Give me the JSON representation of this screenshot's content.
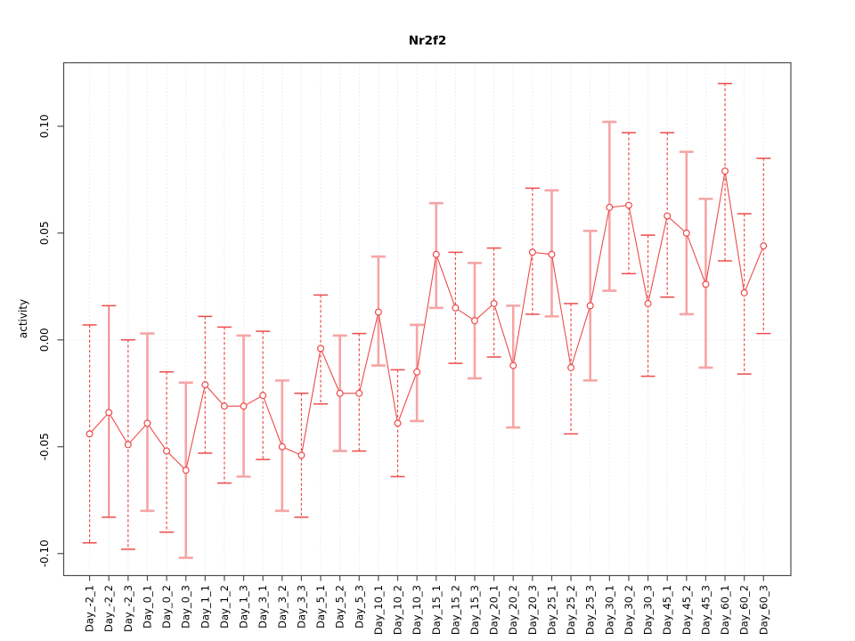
{
  "window": {
    "title": "Nr2f2 activity plot"
  },
  "colors": {
    "series_red": "#ee4b4b",
    "series_pink": "#f5a5a5",
    "grid": "#d9d9d9",
    "axis": "#4d4d4d",
    "text": "#000000",
    "background": "#ffffff"
  },
  "chart_data": {
    "type": "scatter",
    "title": "Nr2f2",
    "xlabel": "",
    "ylabel": "activity",
    "ylim": [
      -0.1103,
      0.1297
    ],
    "yticks": [
      {
        "value": -0.1,
        "label": "-0.10"
      },
      {
        "value": -0.05,
        "label": "-0.05"
      },
      {
        "value": 0.0,
        "label": "0.00"
      },
      {
        "value": 0.05,
        "label": "0.05"
      },
      {
        "value": 0.1,
        "label": "0.10"
      }
    ],
    "grid": {
      "vertical_dotted_per_category": true,
      "zero_reference_line_dotted": true
    },
    "legend": "none",
    "marker": "open-circle",
    "error_bars": true,
    "categories": [
      "Day_-2_1",
      "Day_-2_2",
      "Day_-2_3",
      "Day_0_1",
      "Day_0_2",
      "Day_0_3",
      "Day_1_1",
      "Day_1_2",
      "Day_1_3",
      "Day_3_1",
      "Day_3_2",
      "Day_3_3",
      "Day_5_1",
      "Day_5_2",
      "Day_5_3",
      "Day_10_1",
      "Day_10_2",
      "Day_10_3",
      "Day_15_1",
      "Day_15_2",
      "Day_15_3",
      "Day_20_1",
      "Day_20_2",
      "Day_20_3",
      "Day_25_1",
      "Day_25_2",
      "Day_25_3",
      "Day_30_1",
      "Day_30_2",
      "Day_30_3",
      "Day_45_1",
      "Day_45_2",
      "Day_45_3",
      "Day_60_1",
      "Day_60_2",
      "Day_60_3"
    ],
    "series": [
      {
        "name": "activity",
        "points": [
          {
            "label": "Day_-2_1",
            "value": -0.044,
            "lo": -0.095,
            "hi": 0.007,
            "style": "dashed"
          },
          {
            "label": "Day_-2_2",
            "value": -0.034,
            "lo": -0.083,
            "hi": 0.016,
            "style": "solid"
          },
          {
            "label": "Day_-2_3",
            "value": -0.049,
            "lo": -0.098,
            "hi": 0.0,
            "style": "dashed"
          },
          {
            "label": "Day_0_1",
            "value": -0.039,
            "lo": -0.08,
            "hi": 0.003,
            "style": "pink"
          },
          {
            "label": "Day_0_2",
            "value": -0.052,
            "lo": -0.09,
            "hi": -0.015,
            "style": "dashed"
          },
          {
            "label": "Day_0_3",
            "value": -0.061,
            "lo": -0.102,
            "hi": -0.02,
            "style": "pink"
          },
          {
            "label": "Day_1_1",
            "value": -0.021,
            "lo": -0.053,
            "hi": 0.011,
            "style": "dashed"
          },
          {
            "label": "Day_1_2",
            "value": -0.031,
            "lo": -0.067,
            "hi": 0.006,
            "style": "dashed"
          },
          {
            "label": "Day_1_3",
            "value": -0.031,
            "lo": -0.064,
            "hi": 0.002,
            "style": "pink"
          },
          {
            "label": "Day_3_1",
            "value": -0.026,
            "lo": -0.056,
            "hi": 0.004,
            "style": "dashed"
          },
          {
            "label": "Day_3_2",
            "value": -0.05,
            "lo": -0.08,
            "hi": -0.019,
            "style": "pink"
          },
          {
            "label": "Day_3_3",
            "value": -0.054,
            "lo": -0.083,
            "hi": -0.025,
            "style": "dashed"
          },
          {
            "label": "Day_5_1",
            "value": -0.004,
            "lo": -0.03,
            "hi": 0.021,
            "style": "dashed"
          },
          {
            "label": "Day_5_2",
            "value": -0.025,
            "lo": -0.052,
            "hi": 0.002,
            "style": "pink"
          },
          {
            "label": "Day_5_3",
            "value": -0.025,
            "lo": -0.052,
            "hi": 0.003,
            "style": "dashed"
          },
          {
            "label": "Day_10_1",
            "value": 0.013,
            "lo": -0.012,
            "hi": 0.039,
            "style": "pink"
          },
          {
            "label": "Day_10_2",
            "value": -0.039,
            "lo": -0.064,
            "hi": -0.014,
            "style": "dashed"
          },
          {
            "label": "Day_10_3",
            "value": -0.015,
            "lo": -0.038,
            "hi": 0.007,
            "style": "pink"
          },
          {
            "label": "Day_15_1",
            "value": 0.04,
            "lo": 0.015,
            "hi": 0.064,
            "style": "pink"
          },
          {
            "label": "Day_15_2",
            "value": 0.015,
            "lo": -0.011,
            "hi": 0.041,
            "style": "dashed"
          },
          {
            "label": "Day_15_3",
            "value": 0.009,
            "lo": -0.018,
            "hi": 0.036,
            "style": "pink"
          },
          {
            "label": "Day_20_1",
            "value": 0.017,
            "lo": -0.008,
            "hi": 0.043,
            "style": "dashed"
          },
          {
            "label": "Day_20_2",
            "value": -0.012,
            "lo": -0.041,
            "hi": 0.016,
            "style": "pink"
          },
          {
            "label": "Day_20_3",
            "value": 0.041,
            "lo": 0.012,
            "hi": 0.071,
            "style": "dashed"
          },
          {
            "label": "Day_25_1",
            "value": 0.04,
            "lo": 0.011,
            "hi": 0.07,
            "style": "pink"
          },
          {
            "label": "Day_25_2",
            "value": -0.013,
            "lo": -0.044,
            "hi": 0.017,
            "style": "dashed"
          },
          {
            "label": "Day_25_3",
            "value": 0.016,
            "lo": -0.019,
            "hi": 0.051,
            "style": "pink"
          },
          {
            "label": "Day_30_1",
            "value": 0.062,
            "lo": 0.023,
            "hi": 0.102,
            "style": "pink"
          },
          {
            "label": "Day_30_2",
            "value": 0.063,
            "lo": 0.031,
            "hi": 0.097,
            "style": "dashed"
          },
          {
            "label": "Day_30_3",
            "value": 0.017,
            "lo": -0.017,
            "hi": 0.049,
            "style": "dashed"
          },
          {
            "label": "Day_45_1",
            "value": 0.058,
            "lo": 0.02,
            "hi": 0.097,
            "style": "dashed"
          },
          {
            "label": "Day_45_2",
            "value": 0.05,
            "lo": 0.012,
            "hi": 0.088,
            "style": "pink"
          },
          {
            "label": "Day_45_3",
            "value": 0.026,
            "lo": -0.013,
            "hi": 0.066,
            "style": "pink"
          },
          {
            "label": "Day_60_1",
            "value": 0.079,
            "lo": 0.037,
            "hi": 0.12,
            "style": "dashed"
          },
          {
            "label": "Day_60_2",
            "value": 0.022,
            "lo": -0.016,
            "hi": 0.059,
            "style": "dashed"
          },
          {
            "label": "Day_60_3",
            "value": 0.044,
            "lo": 0.003,
            "hi": 0.085,
            "style": "dashed"
          }
        ]
      }
    ]
  }
}
